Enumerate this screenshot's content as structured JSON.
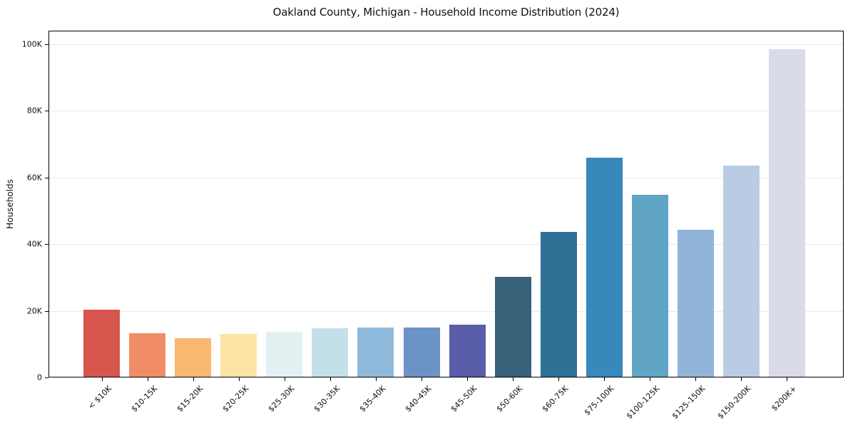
{
  "page": {
    "background": "#ffffff"
  },
  "chart_data": {
    "type": "bar",
    "title": "Oakland County, Michigan - Household Income Distribution (2024)",
    "xlabel": "",
    "ylabel": "Households",
    "categories": [
      "< $10K",
      "$10-15K",
      "$15-20K",
      "$20-25K",
      "$25-30K",
      "$30-35K",
      "$35-40K",
      "$40-45K",
      "$45-50K",
      "$50-60K",
      "$60-75K",
      "$75-100K",
      "$100-125K",
      "$125-150K",
      "$150-200K",
      "$200K+"
    ],
    "values": [
      20400,
      13200,
      11800,
      13000,
      13600,
      14700,
      14900,
      15000,
      15900,
      30200,
      43700,
      66000,
      54700,
      44400,
      63500,
      98400
    ],
    "bar_colors": [
      "#d6564e",
      "#f18d64",
      "#f9b76f",
      "#fce3a6",
      "#e4f1f2",
      "#c3dfea",
      "#90badb",
      "#6c93c5",
      "#5a5ea8",
      "#38617a",
      "#2f7096",
      "#3789bc",
      "#60a5c6",
      "#8fb4d8",
      "#bacce4",
      "#dadbe9"
    ],
    "ylim": [
      0,
      104000
    ],
    "yticks": [
      {
        "value": 0,
        "label": "0"
      },
      {
        "value": 20000,
        "label": "20K"
      },
      {
        "value": 40000,
        "label": "40K"
      },
      {
        "value": 60000,
        "label": "60K"
      },
      {
        "value": 80000,
        "label": "80K"
      },
      {
        "value": 100000,
        "label": "100K"
      }
    ],
    "grid": "horizontal",
    "legend": "none"
  }
}
